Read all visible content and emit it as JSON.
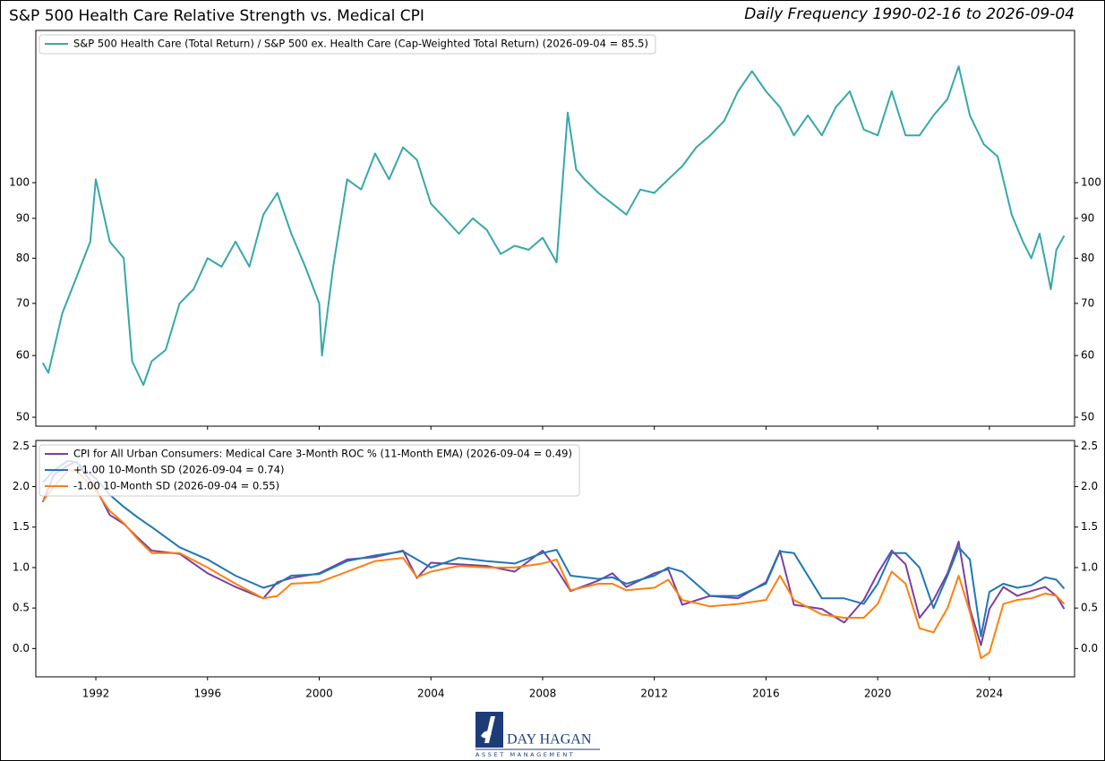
{
  "chart_data": [
    {
      "type": "line",
      "title": "S&P 500 Health Care Relative Strength vs. Medical CPI",
      "subtitle": "Daily Frequency 1990-02-16 to 2026-09-04",
      "x": [
        1990.1,
        1990.3,
        1990.8,
        1991.3,
        1991.8,
        1992,
        1992.5,
        1993,
        1993.3,
        1993.7,
        1994,
        1994.5,
        1995,
        1995.5,
        1996,
        1996.5,
        1997,
        1997.5,
        1998,
        1998.5,
        1999,
        1999.5,
        2000,
        2000.1,
        2000.5,
        2001,
        2001.5,
        2002,
        2002.5,
        2003,
        2003.5,
        2004,
        2004.5,
        2005,
        2005.5,
        2006,
        2006.5,
        2007,
        2007.5,
        2008,
        2008.5,
        2008.9,
        2009.2,
        2009.5,
        2010,
        2010.5,
        2011,
        2011.5,
        2012,
        2012.5,
        2013,
        2013.5,
        2014,
        2014.5,
        2015,
        2015.5,
        2016,
        2016.5,
        2017,
        2017.5,
        2018,
        2018.5,
        2019,
        2019.5,
        2020,
        2020.5,
        2021,
        2021.5,
        2022,
        2022.5,
        2022.9,
        2023.3,
        2023.8,
        2024.3,
        2024.8,
        2025.2,
        2025.5,
        2025.8,
        2026.2,
        2026.4,
        2026.68
      ],
      "series": [
        {
          "name": "S&P 500 Health Care (Total Return) / S&P 500 ex. Health Care (Cap-Weighted Total Return) (2026-09-04 = 85.5)",
          "color": "#37a8a8",
          "values": [
            58.7,
            57,
            68,
            75.5,
            84,
            101,
            84,
            80,
            59,
            55,
            59,
            61,
            70,
            73,
            80,
            78,
            84,
            78,
            91,
            97,
            86,
            78,
            70,
            60,
            78,
            101,
            98,
            109,
            101,
            111,
            107,
            94,
            90,
            86,
            90,
            87,
            81,
            83,
            82,
            85,
            79,
            123,
            104,
            101,
            97,
            94,
            91,
            98,
            97,
            101,
            105,
            111,
            115,
            120,
            131,
            139,
            131,
            125,
            115,
            122,
            115,
            125,
            131,
            117,
            115,
            131,
            115,
            115,
            122,
            128,
            141,
            122,
            112,
            108,
            91,
            84,
            80,
            86,
            73,
            82,
            85.5
          ]
        }
      ],
      "xlim": [
        1989.85,
        2027.05
      ],
      "ylim": [
        48.7,
        156.8
      ],
      "yticks": [
        50,
        60,
        70,
        80,
        90,
        100
      ],
      "log_y": true,
      "legend": "upper left"
    },
    {
      "type": "line",
      "x": [
        1990.1,
        1990.5,
        1991,
        1991.3,
        1992,
        1992.5,
        1993,
        1993.5,
        1994,
        1995,
        1996,
        1997,
        1998,
        1998.5,
        1999,
        2000,
        2001,
        2002,
        2003,
        2003.5,
        2004,
        2005,
        2006,
        2007,
        2008,
        2008.5,
        2009,
        2010,
        2010.5,
        2011,
        2012,
        2012.5,
        2013,
        2014,
        2015,
        2016,
        2016.5,
        2017,
        2018,
        2018.8,
        2019.5,
        2020,
        2020.5,
        2021,
        2021.5,
        2022,
        2022.5,
        2022.9,
        2023.3,
        2023.7,
        2024,
        2024.5,
        2025,
        2025.5,
        2026,
        2026.4,
        2026.68
      ],
      "series": [
        {
          "name": "CPI for All Urban Consumers: Medical Care 3-Month ROC % (11-Month EMA) (2026-09-04 = 0.49)",
          "color": "#7b3fa0",
          "values": [
            1.81,
            2.15,
            2.26,
            2.31,
            1.98,
            1.65,
            1.54,
            1.37,
            1.21,
            1.17,
            0.93,
            0.76,
            0.62,
            0.82,
            0.87,
            0.93,
            1.1,
            1.13,
            1.21,
            0.87,
            1.06,
            1.04,
            1.02,
            0.95,
            1.21,
            0.98,
            0.71,
            0.84,
            0.93,
            0.76,
            0.93,
            0.98,
            0.54,
            0.65,
            0.62,
            0.82,
            1.21,
            0.54,
            0.49,
            0.32,
            0.6,
            0.93,
            1.21,
            1.04,
            0.38,
            0.6,
            0.93,
            1.32,
            0.49,
            0.04,
            0.49,
            0.76,
            0.65,
            0.71,
            0.76,
            0.65,
            0.49
          ]
        },
        {
          "name": "+1.00 10-Month SD (2026-09-04 = 0.74)",
          "color": "#1f77b4",
          "values": [
            2.05,
            2.2,
            2.32,
            2.3,
            2.1,
            1.9,
            1.75,
            1.62,
            1.5,
            1.25,
            1.1,
            0.9,
            0.75,
            0.8,
            0.9,
            0.92,
            1.08,
            1.15,
            1.2,
            1.1,
            1.0,
            1.12,
            1.08,
            1.05,
            1.18,
            1.22,
            0.9,
            0.86,
            0.88,
            0.8,
            0.9,
            1.0,
            0.95,
            0.65,
            0.65,
            0.8,
            1.2,
            1.18,
            0.62,
            0.62,
            0.55,
            0.8,
            1.18,
            1.18,
            1.0,
            0.5,
            0.9,
            1.25,
            1.1,
            0.15,
            0.7,
            0.8,
            0.75,
            0.78,
            0.88,
            0.85,
            0.74
          ]
        },
        {
          "name": "-1.00 10-Month SD (2026-09-04 = 0.55)",
          "color": "#ff7f0e",
          "values": [
            1.82,
            2.0,
            2.2,
            2.2,
            1.95,
            1.7,
            1.55,
            1.35,
            1.18,
            1.18,
            1.0,
            0.8,
            0.62,
            0.65,
            0.8,
            0.82,
            0.95,
            1.08,
            1.12,
            0.88,
            0.95,
            1.02,
            1.0,
            1.0,
            1.05,
            1.1,
            0.72,
            0.8,
            0.8,
            0.72,
            0.75,
            0.85,
            0.6,
            0.52,
            0.55,
            0.6,
            0.9,
            0.6,
            0.42,
            0.38,
            0.38,
            0.55,
            0.95,
            0.8,
            0.25,
            0.2,
            0.5,
            0.9,
            0.45,
            -0.12,
            -0.05,
            0.55,
            0.6,
            0.62,
            0.68,
            0.65,
            0.55
          ]
        }
      ],
      "xlim": [
        1989.85,
        2027.05
      ],
      "xticks": [
        1992,
        1996,
        2000,
        2004,
        2008,
        2012,
        2016,
        2020,
        2024
      ],
      "ylim": [
        -0.35,
        2.57
      ],
      "yticks": [
        {
          "value": 0,
          "label": "0.0"
        },
        0.5,
        {
          "value": 1,
          "label": "1.0"
        },
        1.5,
        {
          "value": 2,
          "label": "2.0"
        },
        2.5
      ],
      "log_y": false,
      "legend": "upper left"
    }
  ],
  "footer": {
    "logo_name": "DAY HAGAN",
    "logo_tagline": "ASSET MANAGEMENT"
  }
}
